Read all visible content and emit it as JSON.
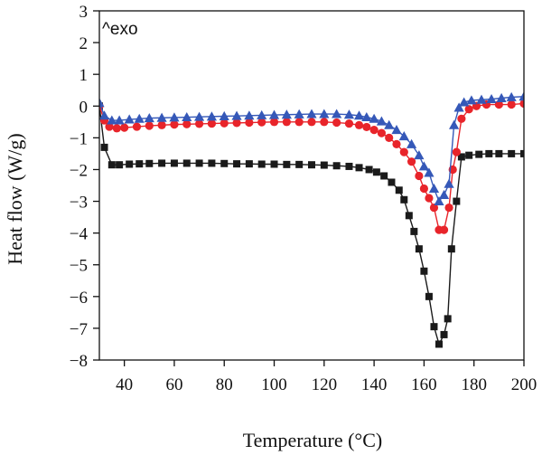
{
  "chart_data": {
    "type": "line",
    "title": "",
    "xlabel": "Temperature (°C)",
    "ylabel": "Heat flow (W/g)",
    "annotation": "^exo",
    "xlim": [
      30,
      200
    ],
    "ylim": [
      -8,
      3
    ],
    "xticks": [
      40,
      60,
      80,
      100,
      120,
      140,
      160,
      180,
      200
    ],
    "yticks": [
      3,
      2,
      1,
      0,
      -1,
      -2,
      -3,
      -4,
      -5,
      -6,
      -7,
      -8
    ],
    "grid": false,
    "legend": "none",
    "series": [
      {
        "color": "#1a1a1a",
        "marker": "square",
        "points": [
          [
            30,
            0.0
          ],
          [
            32,
            -1.3
          ],
          [
            35,
            -1.85
          ],
          [
            38,
            -1.85
          ],
          [
            42,
            -1.83
          ],
          [
            46,
            -1.82
          ],
          [
            50,
            -1.81
          ],
          [
            55,
            -1.8
          ],
          [
            60,
            -1.8
          ],
          [
            65,
            -1.8
          ],
          [
            70,
            -1.8
          ],
          [
            75,
            -1.8
          ],
          [
            80,
            -1.81
          ],
          [
            85,
            -1.82
          ],
          [
            90,
            -1.82
          ],
          [
            95,
            -1.83
          ],
          [
            100,
            -1.83
          ],
          [
            105,
            -1.84
          ],
          [
            110,
            -1.84
          ],
          [
            115,
            -1.85
          ],
          [
            120,
            -1.86
          ],
          [
            125,
            -1.88
          ],
          [
            130,
            -1.9
          ],
          [
            134,
            -1.94
          ],
          [
            138,
            -2.0
          ],
          [
            141,
            -2.08
          ],
          [
            144,
            -2.2
          ],
          [
            147,
            -2.4
          ],
          [
            150,
            -2.65
          ],
          [
            152,
            -2.95
          ],
          [
            154,
            -3.45
          ],
          [
            156,
            -3.95
          ],
          [
            158,
            -4.5
          ],
          [
            160,
            -5.2
          ],
          [
            162,
            -6.0
          ],
          [
            164,
            -6.95
          ],
          [
            166,
            -7.5
          ],
          [
            168,
            -7.2
          ],
          [
            169.5,
            -6.7
          ],
          [
            171,
            -4.5
          ],
          [
            173,
            -3.0
          ],
          [
            175,
            -1.6
          ],
          [
            178,
            -1.55
          ],
          [
            182,
            -1.52
          ],
          [
            186,
            -1.5
          ],
          [
            190,
            -1.5
          ],
          [
            195,
            -1.5
          ],
          [
            200,
            -1.5
          ]
        ]
      },
      {
        "color": "#e8242a",
        "marker": "circle",
        "points": [
          [
            30,
            0.0
          ],
          [
            32,
            -0.45
          ],
          [
            34,
            -0.65
          ],
          [
            37,
            -0.7
          ],
          [
            40,
            -0.68
          ],
          [
            45,
            -0.65
          ],
          [
            50,
            -0.62
          ],
          [
            55,
            -0.6
          ],
          [
            60,
            -0.58
          ],
          [
            65,
            -0.57
          ],
          [
            70,
            -0.56
          ],
          [
            75,
            -0.55
          ],
          [
            80,
            -0.54
          ],
          [
            85,
            -0.53
          ],
          [
            90,
            -0.52
          ],
          [
            95,
            -0.51
          ],
          [
            100,
            -0.5
          ],
          [
            105,
            -0.5
          ],
          [
            110,
            -0.5
          ],
          [
            115,
            -0.5
          ],
          [
            120,
            -0.5
          ],
          [
            125,
            -0.52
          ],
          [
            130,
            -0.55
          ],
          [
            134,
            -0.6
          ],
          [
            137,
            -0.66
          ],
          [
            140,
            -0.75
          ],
          [
            143,
            -0.85
          ],
          [
            146,
            -1.0
          ],
          [
            149,
            -1.2
          ],
          [
            152,
            -1.45
          ],
          [
            155,
            -1.75
          ],
          [
            158,
            -2.2
          ],
          [
            160,
            -2.6
          ],
          [
            162,
            -2.9
          ],
          [
            164,
            -3.2
          ],
          [
            166,
            -3.9
          ],
          [
            168,
            -3.9
          ],
          [
            170,
            -3.2
          ],
          [
            171.5,
            -2.0
          ],
          [
            173,
            -1.45
          ],
          [
            175,
            -0.4
          ],
          [
            178,
            -0.1
          ],
          [
            181,
            0.0
          ],
          [
            185,
            0.05
          ],
          [
            190,
            0.05
          ],
          [
            195,
            0.05
          ],
          [
            200,
            0.08
          ]
        ]
      },
      {
        "color": "#3558b8",
        "marker": "triangle",
        "points": [
          [
            30,
            0.1
          ],
          [
            32,
            -0.3
          ],
          [
            35,
            -0.45
          ],
          [
            38,
            -0.45
          ],
          [
            42,
            -0.42
          ],
          [
            46,
            -0.4
          ],
          [
            50,
            -0.38
          ],
          [
            55,
            -0.37
          ],
          [
            60,
            -0.36
          ],
          [
            65,
            -0.35
          ],
          [
            70,
            -0.34
          ],
          [
            75,
            -0.33
          ],
          [
            80,
            -0.32
          ],
          [
            85,
            -0.31
          ],
          [
            90,
            -0.3
          ],
          [
            95,
            -0.29
          ],
          [
            100,
            -0.28
          ],
          [
            105,
            -0.27
          ],
          [
            110,
            -0.26
          ],
          [
            115,
            -0.25
          ],
          [
            120,
            -0.25
          ],
          [
            125,
            -0.25
          ],
          [
            130,
            -0.27
          ],
          [
            134,
            -0.3
          ],
          [
            137,
            -0.35
          ],
          [
            140,
            -0.4
          ],
          [
            143,
            -0.48
          ],
          [
            146,
            -0.6
          ],
          [
            149,
            -0.75
          ],
          [
            152,
            -0.95
          ],
          [
            155,
            -1.2
          ],
          [
            158,
            -1.55
          ],
          [
            160,
            -1.9
          ],
          [
            162,
            -2.1
          ],
          [
            164,
            -2.6
          ],
          [
            166,
            -3.0
          ],
          [
            168,
            -2.8
          ],
          [
            170,
            -2.45
          ],
          [
            172,
            -0.6
          ],
          [
            174,
            -0.05
          ],
          [
            176,
            0.12
          ],
          [
            179,
            0.18
          ],
          [
            183,
            0.2
          ],
          [
            187,
            0.22
          ],
          [
            191,
            0.25
          ],
          [
            195,
            0.28
          ],
          [
            200,
            0.3
          ]
        ]
      }
    ]
  }
}
